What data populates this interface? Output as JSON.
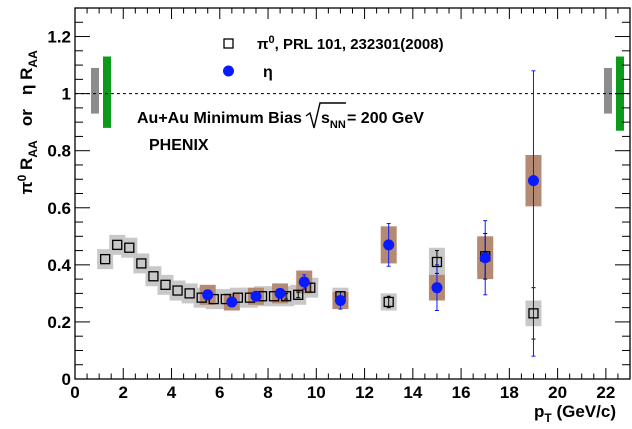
{
  "chart_data": {
    "type": "scatter",
    "xlabel": "p",
    "xlabel_sub": "T",
    "xlabel_unit": " (GeV/c)",
    "ylabel_parts": {
      "pi": "π",
      "pi_sup": "0",
      "r1": " R",
      "r1_sub": "AA",
      "or": "   or   ",
      "eta": "η R",
      "eta_sub": "AA"
    },
    "xlim": [
      0,
      23
    ],
    "ylim": [
      0,
      1.3
    ],
    "x_ticks": [
      0,
      2,
      4,
      6,
      8,
      10,
      12,
      14,
      16,
      18,
      20,
      22
    ],
    "x_tick_labels": [
      "0",
      "2",
      "4",
      "6",
      "8",
      "10",
      "12",
      "14",
      "16",
      "18",
      "20",
      "22"
    ],
    "y_ticks": [
      0,
      0.2,
      0.4,
      0.6,
      0.8,
      1.0,
      1.2
    ],
    "y_tick_labels": [
      "0",
      "0.2",
      "0.4",
      "0.6",
      "0.8",
      "1",
      "1.2"
    ],
    "reference_line": 1,
    "annotation_main": "Au+Au Minimum Bias ",
    "annotation_sqrt": "s",
    "annotation_sqrt_sub": "NN",
    "annotation_value": " = 200 GeV",
    "annotation_experiment": "PHENIX",
    "legend": {
      "pi0": {
        "pre": "π",
        "sup": "0",
        "post": ", PRL 101, 232301(2008)"
      },
      "eta": {
        "label": "η"
      }
    },
    "global_error_bands": [
      {
        "side": "left",
        "series": "pi0",
        "color": "#8c8c8c",
        "low": 0.93,
        "high": 1.09
      },
      {
        "side": "left",
        "series": "eta",
        "color": "#0b9a1a",
        "low": 0.88,
        "high": 1.13
      },
      {
        "side": "right",
        "series": "pi0",
        "color": "#8c8c8c",
        "low": 0.93,
        "high": 1.09
      },
      {
        "side": "right",
        "series": "eta",
        "color": "#0b9a1a",
        "low": 0.87,
        "high": 1.13
      }
    ],
    "series": [
      {
        "name": "pi0",
        "marker": "open-square",
        "color": "#000000",
        "syst_color": "#c8c8c8",
        "points": [
          {
            "x": 1.25,
            "y": 0.42,
            "err": 0.0,
            "syst": 0.035
          },
          {
            "x": 1.75,
            "y": 0.47,
            "err": 0.0,
            "syst": 0.035
          },
          {
            "x": 2.25,
            "y": 0.46,
            "err": 0.0,
            "syst": 0.035
          },
          {
            "x": 2.75,
            "y": 0.405,
            "err": 0.0,
            "syst": 0.035
          },
          {
            "x": 3.25,
            "y": 0.36,
            "err": 0.0,
            "syst": 0.035
          },
          {
            "x": 3.75,
            "y": 0.33,
            "err": 0.0,
            "syst": 0.035
          },
          {
            "x": 4.25,
            "y": 0.31,
            "err": 0.0,
            "syst": 0.035
          },
          {
            "x": 4.75,
            "y": 0.3,
            "err": 0.0,
            "syst": 0.035
          },
          {
            "x": 5.25,
            "y": 0.285,
            "err": 0.0,
            "syst": 0.035
          },
          {
            "x": 5.75,
            "y": 0.28,
            "err": 0.0,
            "syst": 0.035
          },
          {
            "x": 6.25,
            "y": 0.28,
            "err": 0.0,
            "syst": 0.035
          },
          {
            "x": 6.75,
            "y": 0.285,
            "err": 0.0,
            "syst": 0.035
          },
          {
            "x": 7.25,
            "y": 0.285,
            "err": 0.0,
            "syst": 0.035
          },
          {
            "x": 7.75,
            "y": 0.29,
            "err": 0.0,
            "syst": 0.035
          },
          {
            "x": 8.25,
            "y": 0.29,
            "err": 0.0,
            "syst": 0.035
          },
          {
            "x": 8.75,
            "y": 0.29,
            "err": 0.01,
            "syst": 0.035
          },
          {
            "x": 9.25,
            "y": 0.295,
            "err": 0.01,
            "syst": 0.035
          },
          {
            "x": 9.75,
            "y": 0.32,
            "err": 0.015,
            "syst": 0.035
          },
          {
            "x": 11.0,
            "y": 0.29,
            "err": 0.015,
            "syst": 0.03
          },
          {
            "x": 13.0,
            "y": 0.27,
            "err": 0.02,
            "syst": 0.03
          },
          {
            "x": 15.0,
            "y": 0.41,
            "err": 0.04,
            "syst": 0.05
          },
          {
            "x": 17.0,
            "y": 0.43,
            "err": 0.08,
            "syst": 0.06
          },
          {
            "x": 19.0,
            "y": 0.23,
            "err": 0.09,
            "syst": 0.045
          }
        ]
      },
      {
        "name": "eta",
        "marker": "filled-circle",
        "color": "#0a1aff",
        "syst_color": "#b58a73",
        "points": [
          {
            "x": 5.5,
            "y": 0.295,
            "err": 0.01,
            "syst": 0.035
          },
          {
            "x": 6.5,
            "y": 0.27,
            "err": 0.01,
            "syst": 0.03
          },
          {
            "x": 7.5,
            "y": 0.29,
            "err": 0.01,
            "syst": 0.03
          },
          {
            "x": 8.5,
            "y": 0.3,
            "err": 0.015,
            "syst": 0.035
          },
          {
            "x": 9.5,
            "y": 0.34,
            "err": 0.025,
            "syst": 0.04
          },
          {
            "x": 11.0,
            "y": 0.275,
            "err": 0.03,
            "syst": 0.03
          },
          {
            "x": 13.0,
            "y": 0.47,
            "err": 0.075,
            "syst": 0.065
          },
          {
            "x": 15.0,
            "y": 0.32,
            "err": 0.08,
            "syst": 0.045
          },
          {
            "x": 17.0,
            "y": 0.425,
            "err": 0.13,
            "syst": 0.075
          },
          {
            "x": 19.0,
            "y": 0.695,
            "err": 0.5,
            "syst": 0.09,
            "err_high": 1.08,
            "err_low": 0.08
          }
        ]
      }
    ]
  }
}
